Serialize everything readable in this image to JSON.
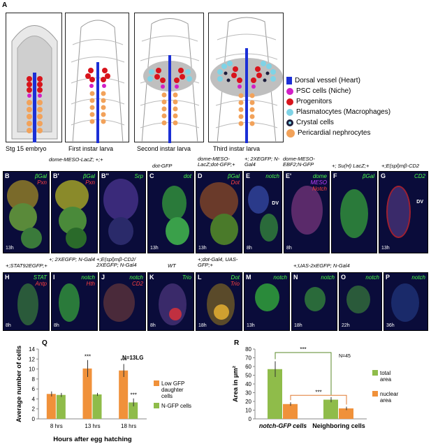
{
  "panel_letters": {
    "A": "A",
    "Q": "Q",
    "R": "R"
  },
  "stages": [
    "Stg 15 embryo",
    "First instar larva",
    "Second instar larva",
    "Third instar larva"
  ],
  "legend": [
    {
      "label": "Dorsal vessel (Heart)",
      "color": "#1b2fd6",
      "shape": "rect"
    },
    {
      "label": "PSC cells (Niche)",
      "color": "#d21fc6",
      "shape": "circle"
    },
    {
      "label": "Progenitors",
      "color": "#d8141c",
      "shape": "circle"
    },
    {
      "label": "Plasmatocytes (Macrophages)",
      "color": "#7fd3e6",
      "shape": "circle"
    },
    {
      "label": "Crystal cells",
      "color": "#1b1b3a",
      "shape": "star"
    },
    {
      "label": "Pericardial nephrocytes",
      "color": "#f2a25a",
      "shape": "circle"
    }
  ],
  "micro_row1": [
    {
      "letter": "B",
      "time": "13h",
      "channels": [
        "βGal",
        "Pxn"
      ]
    },
    {
      "letter": "B'",
      "time": "",
      "channels": [
        "βGal",
        "Pxn"
      ]
    },
    {
      "letter": "B''",
      "time": "",
      "channels": [
        "Srp"
      ]
    },
    {
      "letter": "C",
      "time": "13h",
      "channels": [
        "dot"
      ]
    },
    {
      "letter": "D",
      "time": "13h",
      "channels": [
        "βGal",
        "Dot"
      ]
    },
    {
      "letter": "E",
      "time": "8h",
      "channels": [
        "notch"
      ]
    },
    {
      "letter": "E'",
      "time": "8h",
      "channels": [
        "dome",
        "MESO",
        "Notch"
      ]
    },
    {
      "letter": "F",
      "time": "",
      "channels": [
        "βGal"
      ]
    },
    {
      "letter": "G",
      "time": "13h",
      "channels": [
        "CD2"
      ]
    }
  ],
  "micro_row1_titles": [
    "dome-MESO-LacZ; +;+",
    "dot-GFP",
    "dome-MESO-LacZ;dot-GFP;+",
    "+; 2XEGFP; N-Gal4",
    "dome-MESO-EBF2;N-GFP",
    "+; Su(H) LacZ;+",
    "+;E(spl)mβ-CD2"
  ],
  "micro_row2": [
    {
      "letter": "H",
      "time": "8h",
      "channels": [
        "STAT",
        "Antp"
      ]
    },
    {
      "letter": "I",
      "time": "8h",
      "channels": [
        "notch",
        "Hth"
      ]
    },
    {
      "letter": "J",
      "time": "",
      "channels": [
        "notch",
        "CD2"
      ]
    },
    {
      "letter": "K",
      "time": "8h",
      "channels": [
        "Trio"
      ]
    },
    {
      "letter": "L",
      "time": "18h",
      "channels": [
        "Dot",
        "Trio"
      ]
    },
    {
      "letter": "M",
      "time": "13h",
      "channels": [
        "notch"
      ]
    },
    {
      "letter": "N",
      "time": "18h",
      "channels": [
        "notch"
      ]
    },
    {
      "letter": "O",
      "time": "22h",
      "channels": [
        "notch"
      ]
    },
    {
      "letter": "P",
      "time": "36h",
      "channels": [
        "notch"
      ]
    }
  ],
  "micro_row2_titles": [
    "+;STAT92EGFP;+",
    "+; 2XEGFP; N-Gal4",
    "+;E(spl)mβ-CD2/ 2XEGFP; N-Gal4",
    "WT",
    "+;dot-Gal4, UAS-GFP;+",
    "+;UAS-2xEGFP; N-Gal4"
  ],
  "dv_label": "DV",
  "chart_data": [
    {
      "type": "bar",
      "title": "",
      "note": "N=13LG",
      "categories": [
        "8 hrs",
        "13 hrs",
        "18 hrs"
      ],
      "xlabel": "Hours after egg hatching",
      "ylabel": "Average number of cells",
      "ylim": [
        0,
        14
      ],
      "yticks": [
        0,
        2,
        4,
        6,
        8,
        10,
        12,
        14
      ],
      "series": [
        {
          "name": "Low GFP daughter cells",
          "color": "#f0913a",
          "values": [
            5.0,
            10.1,
            9.7
          ],
          "errors": [
            0.5,
            1.7,
            1.3
          ],
          "sig": [
            "",
            "***",
            "***"
          ]
        },
        {
          "name": "N-GFP cells",
          "color": "#8fbc4a",
          "values": [
            4.8,
            4.9,
            3.3
          ],
          "errors": [
            0.4,
            0.3,
            0.8
          ],
          "sig": [
            "",
            "",
            "***"
          ]
        }
      ]
    },
    {
      "type": "bar",
      "title": "",
      "note": "N=45",
      "categories": [
        "notch-GFP cells",
        "Neighboring cells"
      ],
      "xlabel": "",
      "ylabel": "Area in µm²",
      "ylim": [
        0,
        80
      ],
      "yticks": [
        0,
        10,
        20,
        30,
        40,
        50,
        60,
        70,
        80
      ],
      "series": [
        {
          "name": "total area",
          "color": "#8fbc4a",
          "values": [
            57,
            22
          ],
          "errors": [
            9,
            3
          ]
        },
        {
          "name": "nuclear area",
          "color": "#f0913a",
          "values": [
            17,
            12
          ],
          "errors": [
            2,
            2
          ]
        }
      ],
      "sig_labels": [
        "***",
        "***"
      ]
    }
  ]
}
